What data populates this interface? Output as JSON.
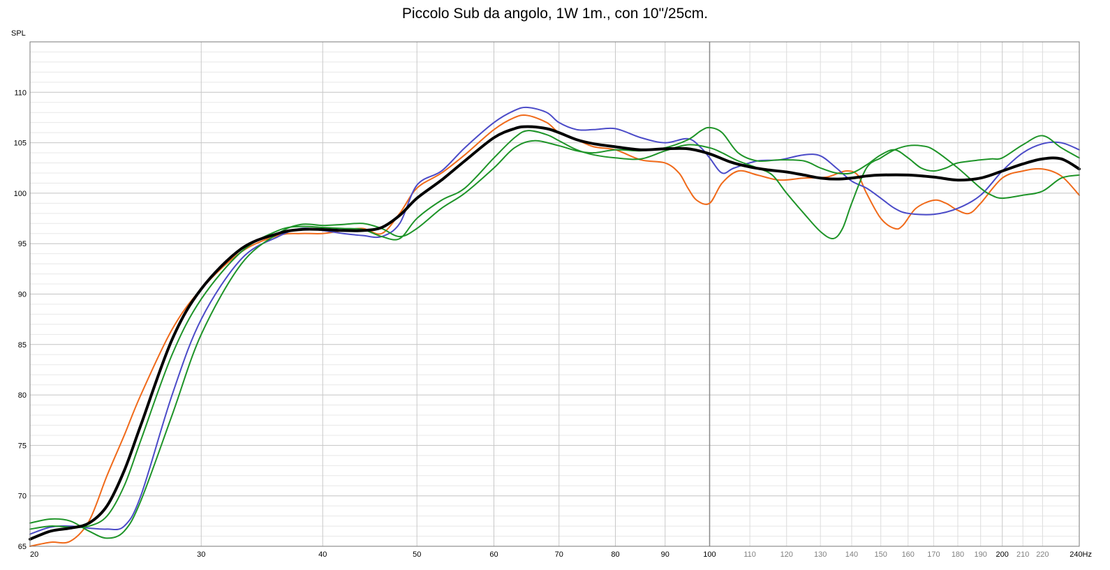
{
  "chart_data": {
    "type": "line",
    "title": "Piccolo Sub da angolo, 1W 1m., con 10\"/25cm.",
    "ylabel": "SPL",
    "x_unit": "Hz",
    "x_scale": "log",
    "xlim": [
      20,
      240
    ],
    "ylim": [
      65,
      115
    ],
    "y_ticks": [
      65,
      70,
      75,
      80,
      85,
      90,
      95,
      100,
      105,
      110
    ],
    "x_ticks": [
      {
        "value": 20,
        "label": "20",
        "major": true
      },
      {
        "value": 30,
        "label": "30",
        "major": true
      },
      {
        "value": 40,
        "label": "40",
        "major": true
      },
      {
        "value": 50,
        "label": "50",
        "major": true
      },
      {
        "value": 60,
        "label": "60",
        "major": true
      },
      {
        "value": 70,
        "label": "70",
        "major": true
      },
      {
        "value": 80,
        "label": "80",
        "major": true
      },
      {
        "value": 90,
        "label": "90",
        "major": true
      },
      {
        "value": 100,
        "label": "100",
        "major": true
      },
      {
        "value": 110,
        "label": "110",
        "major": false
      },
      {
        "value": 120,
        "label": "120",
        "major": false
      },
      {
        "value": 130,
        "label": "130",
        "major": false
      },
      {
        "value": 140,
        "label": "140",
        "major": false
      },
      {
        "value": 150,
        "label": "150",
        "major": false
      },
      {
        "value": 160,
        "label": "160",
        "major": false
      },
      {
        "value": 170,
        "label": "170",
        "major": false
      },
      {
        "value": 180,
        "label": "180",
        "major": false
      },
      {
        "value": 190,
        "label": "190",
        "major": false
      },
      {
        "value": 200,
        "label": "200",
        "major": true
      },
      {
        "value": 210,
        "label": "210",
        "major": false
      },
      {
        "value": 220,
        "label": "220",
        "major": false
      },
      {
        "value": 240,
        "label": "240Hz",
        "major": true
      }
    ],
    "grid": true,
    "legend": "none",
    "series": [
      {
        "color": "#f06a1a",
        "width": 2,
        "points": [
          [
            20,
            65.0
          ],
          [
            21,
            65.4
          ],
          [
            22,
            65.5
          ],
          [
            23,
            67.5
          ],
          [
            24,
            72
          ],
          [
            25,
            76
          ],
          [
            26,
            80
          ],
          [
            28,
            86.5
          ],
          [
            30,
            90.5
          ],
          [
            33,
            94.2
          ],
          [
            36,
            95.8
          ],
          [
            38,
            96.0
          ],
          [
            40,
            96.0
          ],
          [
            42,
            96.3
          ],
          [
            44,
            96.5
          ],
          [
            46,
            96.0
          ],
          [
            48,
            98
          ],
          [
            50,
            100.5
          ],
          [
            53,
            102
          ],
          [
            56,
            103.8
          ],
          [
            60,
            106.3
          ],
          [
            63,
            107.5
          ],
          [
            65,
            107.7
          ],
          [
            68,
            107
          ],
          [
            70,
            106
          ],
          [
            73,
            105.3
          ],
          [
            76,
            104.6
          ],
          [
            80,
            104.3
          ],
          [
            85,
            103.3
          ],
          [
            90,
            103.0
          ],
          [
            93,
            102
          ],
          [
            95,
            100.5
          ],
          [
            97,
            99.3
          ],
          [
            100,
            99.0
          ],
          [
            103,
            101
          ],
          [
            107,
            102.2
          ],
          [
            112,
            101.8
          ],
          [
            118,
            101.3
          ],
          [
            125,
            101.5
          ],
          [
            132,
            101.6
          ],
          [
            138,
            102.2
          ],
          [
            142,
            101.8
          ],
          [
            145,
            100
          ],
          [
            150,
            97.5
          ],
          [
            155,
            96.5
          ],
          [
            158,
            96.8
          ],
          [
            163,
            98.5
          ],
          [
            170,
            99.3
          ],
          [
            175,
            99.0
          ],
          [
            180,
            98.3
          ],
          [
            185,
            98.0
          ],
          [
            190,
            99
          ],
          [
            200,
            101.5
          ],
          [
            210,
            102.2
          ],
          [
            220,
            102.4
          ],
          [
            230,
            101.7
          ],
          [
            240,
            99.8
          ]
        ]
      },
      {
        "color": "#4b4bc8",
        "width": 2,
        "points": [
          [
            20,
            66.2
          ],
          [
            21,
            66.9
          ],
          [
            22,
            67.0
          ],
          [
            23,
            66.8
          ],
          [
            24,
            66.7
          ],
          [
            25,
            67.0
          ],
          [
            26,
            70
          ],
          [
            28,
            80
          ],
          [
            30,
            87.5
          ],
          [
            33,
            93.5
          ],
          [
            36,
            95.7
          ],
          [
            38,
            96.5
          ],
          [
            40,
            96.3
          ],
          [
            42,
            96.0
          ],
          [
            44,
            95.8
          ],
          [
            46,
            95.7
          ],
          [
            48,
            97
          ],
          [
            50,
            100.8
          ],
          [
            53,
            102.2
          ],
          [
            56,
            104.5
          ],
          [
            60,
            107
          ],
          [
            63,
            108.2
          ],
          [
            65,
            108.5
          ],
          [
            68,
            108
          ],
          [
            70,
            107
          ],
          [
            73,
            106.3
          ],
          [
            76,
            106.3
          ],
          [
            80,
            106.4
          ],
          [
            85,
            105.5
          ],
          [
            90,
            105.0
          ],
          [
            95,
            105.4
          ],
          [
            98,
            104.5
          ],
          [
            100,
            103.5
          ],
          [
            103,
            102
          ],
          [
            106,
            102.5
          ],
          [
            112,
            103.2
          ],
          [
            118,
            103.3
          ],
          [
            125,
            103.8
          ],
          [
            130,
            103.7
          ],
          [
            135,
            102.5
          ],
          [
            140,
            101.2
          ],
          [
            145,
            100.5
          ],
          [
            150,
            99.5
          ],
          [
            155,
            98.5
          ],
          [
            160,
            98
          ],
          [
            170,
            97.9
          ],
          [
            180,
            98.5
          ],
          [
            190,
            99.8
          ],
          [
            200,
            102.2
          ],
          [
            210,
            104
          ],
          [
            220,
            104.9
          ],
          [
            230,
            105
          ],
          [
            240,
            104.3
          ]
        ]
      },
      {
        "color": "#1e9428",
        "width": 2,
        "points": [
          [
            20,
            67.3
          ],
          [
            21,
            67.7
          ],
          [
            22,
            67.5
          ],
          [
            23,
            66.5
          ],
          [
            24,
            65.8
          ],
          [
            25,
            66.5
          ],
          [
            26,
            69.5
          ],
          [
            28,
            78
          ],
          [
            30,
            86
          ],
          [
            33,
            93
          ],
          [
            36,
            96
          ],
          [
            38,
            96.9
          ],
          [
            40,
            96.8
          ],
          [
            42,
            96.9
          ],
          [
            44,
            97.0
          ],
          [
            46,
            96.5
          ],
          [
            48,
            95.7
          ],
          [
            50,
            96.5
          ],
          [
            53,
            98.5
          ],
          [
            56,
            100
          ],
          [
            60,
            102.5
          ],
          [
            63,
            104.5
          ],
          [
            66,
            105.2
          ],
          [
            70,
            104.7
          ],
          [
            73,
            104.2
          ],
          [
            76,
            104
          ],
          [
            80,
            104.3
          ],
          [
            85,
            104.2
          ],
          [
            90,
            104.5
          ],
          [
            95,
            105.3
          ],
          [
            98,
            106.2
          ],
          [
            100,
            106.5
          ],
          [
            103,
            106.0
          ],
          [
            107,
            104
          ],
          [
            112,
            103.2
          ],
          [
            118,
            103.3
          ],
          [
            125,
            103.2
          ],
          [
            130,
            102.5
          ],
          [
            135,
            102.0
          ],
          [
            140,
            102
          ],
          [
            145,
            102.8
          ],
          [
            150,
            103.8
          ],
          [
            155,
            104.3
          ],
          [
            160,
            103.5
          ],
          [
            165,
            102.5
          ],
          [
            170,
            102.2
          ],
          [
            175,
            102.5
          ],
          [
            180,
            103
          ],
          [
            190,
            103.3
          ],
          [
            195,
            103.4
          ],
          [
            200,
            103.5
          ],
          [
            210,
            104.8
          ],
          [
            220,
            105.7
          ],
          [
            230,
            104.5
          ],
          [
            240,
            103.5
          ]
        ]
      },
      {
        "color": "#1e9428",
        "width": 2,
        "points": [
          [
            20,
            66.7
          ],
          [
            21,
            67.0
          ],
          [
            22,
            66.9
          ],
          [
            23,
            67.0
          ],
          [
            24,
            68
          ],
          [
            25,
            71
          ],
          [
            26,
            75.5
          ],
          [
            28,
            84
          ],
          [
            30,
            89.5
          ],
          [
            33,
            94.2
          ],
          [
            36,
            96.3
          ],
          [
            38,
            96.7
          ],
          [
            40,
            96.6
          ],
          [
            42,
            96.5
          ],
          [
            44,
            96.4
          ],
          [
            46,
            95.7
          ],
          [
            48,
            95.5
          ],
          [
            50,
            97.5
          ],
          [
            53,
            99.3
          ],
          [
            56,
            100.5
          ],
          [
            60,
            103.5
          ],
          [
            63,
            105.5
          ],
          [
            65,
            106.2
          ],
          [
            68,
            105.8
          ],
          [
            70,
            105.2
          ],
          [
            73,
            104.3
          ],
          [
            76,
            103.8
          ],
          [
            80,
            103.5
          ],
          [
            85,
            103.4
          ],
          [
            90,
            104.2
          ],
          [
            95,
            104.8
          ],
          [
            100,
            104.5
          ],
          [
            103,
            104
          ],
          [
            107,
            103.2
          ],
          [
            112,
            102.5
          ],
          [
            116,
            101.8
          ],
          [
            120,
            100
          ],
          [
            125,
            98
          ],
          [
            130,
            96.2
          ],
          [
            134,
            95.5
          ],
          [
            137,
            96.5
          ],
          [
            140,
            99
          ],
          [
            145,
            102.5
          ],
          [
            150,
            103.5
          ],
          [
            155,
            104.3
          ],
          [
            160,
            104.7
          ],
          [
            165,
            104.7
          ],
          [
            170,
            104.3
          ],
          [
            180,
            102.5
          ],
          [
            190,
            100.5
          ],
          [
            195,
            99.8
          ],
          [
            200,
            99.5
          ],
          [
            210,
            99.8
          ],
          [
            220,
            100.2
          ],
          [
            230,
            101.5
          ],
          [
            240,
            101.8
          ]
        ]
      },
      {
        "color": "#000000",
        "width": 4,
        "points": [
          [
            20,
            65.7
          ],
          [
            21,
            66.5
          ],
          [
            22,
            66.8
          ],
          [
            23,
            67.3
          ],
          [
            24,
            69
          ],
          [
            25,
            72.5
          ],
          [
            26,
            77
          ],
          [
            28,
            85.5
          ],
          [
            30,
            90.5
          ],
          [
            33,
            94.5
          ],
          [
            36,
            96
          ],
          [
            38,
            96.4
          ],
          [
            40,
            96.4
          ],
          [
            42,
            96.3
          ],
          [
            44,
            96.3
          ],
          [
            46,
            96.6
          ],
          [
            48,
            97.8
          ],
          [
            50,
            99.5
          ],
          [
            53,
            101.3
          ],
          [
            56,
            103.2
          ],
          [
            60,
            105.5
          ],
          [
            63,
            106.4
          ],
          [
            65,
            106.6
          ],
          [
            68,
            106.4
          ],
          [
            70,
            106.0
          ],
          [
            73,
            105.3
          ],
          [
            76,
            104.9
          ],
          [
            80,
            104.6
          ],
          [
            85,
            104.3
          ],
          [
            90,
            104.4
          ],
          [
            95,
            104.4
          ],
          [
            100,
            103.9
          ],
          [
            105,
            103.1
          ],
          [
            110,
            102.6
          ],
          [
            115,
            102.3
          ],
          [
            120,
            102.1
          ],
          [
            125,
            101.8
          ],
          [
            130,
            101.5
          ],
          [
            135,
            101.4
          ],
          [
            140,
            101.5
          ],
          [
            145,
            101.7
          ],
          [
            150,
            101.8
          ],
          [
            160,
            101.8
          ],
          [
            170,
            101.6
          ],
          [
            180,
            101.3
          ],
          [
            190,
            101.5
          ],
          [
            200,
            102.2
          ],
          [
            210,
            102.9
          ],
          [
            220,
            103.4
          ],
          [
            230,
            103.4
          ],
          [
            240,
            102.4
          ]
        ]
      }
    ]
  }
}
